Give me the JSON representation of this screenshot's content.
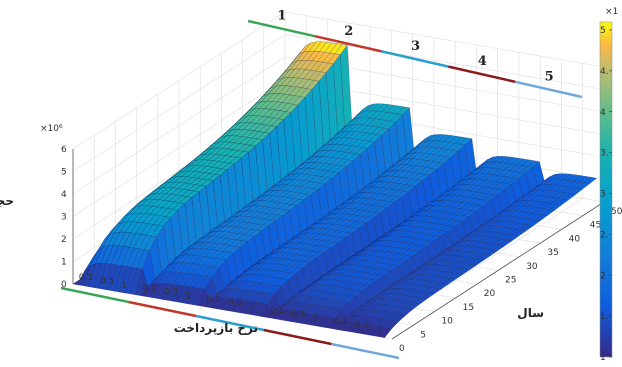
{
  "chart_data": {
    "type": "surface3d",
    "title": "",
    "zlabel": "حجم پول",
    "xlabel": "نرخ بازپرداخت",
    "ylabel": "سال",
    "z_exponent": "×10⁶",
    "colorbar_exponent": "×1",
    "zlim": [
      0,
      6
    ],
    "z_ticks": [
      0,
      1,
      2,
      3,
      4,
      5,
      6
    ],
    "y_ticks": [
      0,
      5,
      10,
      15,
      20,
      25,
      30,
      35,
      40,
      45,
      50
    ],
    "x_tick_labels": [
      "0.1",
      "0.5",
      "1",
      "0.1",
      "0.5",
      "1",
      "0.1",
      "0.5",
      "1",
      "0.1",
      "0.5",
      "1",
      "0.1",
      "0.5",
      "1"
    ],
    "colorbar_ticks": [
      "5",
      "4.",
      "4",
      "3.",
      "3",
      "2.",
      "2",
      "1.",
      "1"
    ],
    "segments": [
      {
        "label": "1",
        "color": "#3aa655",
        "peak": 5.0
      },
      {
        "label": "2",
        "color": "#c0392b",
        "peak": 2.7
      },
      {
        "label": "3",
        "color": "#29a0cc",
        "peak": 1.8
      },
      {
        "label": "4",
        "color": "#8b1a1a",
        "peak": 1.3
      },
      {
        "label": "5",
        "color": "#6fa8d8",
        "peak": 1.0
      }
    ]
  }
}
